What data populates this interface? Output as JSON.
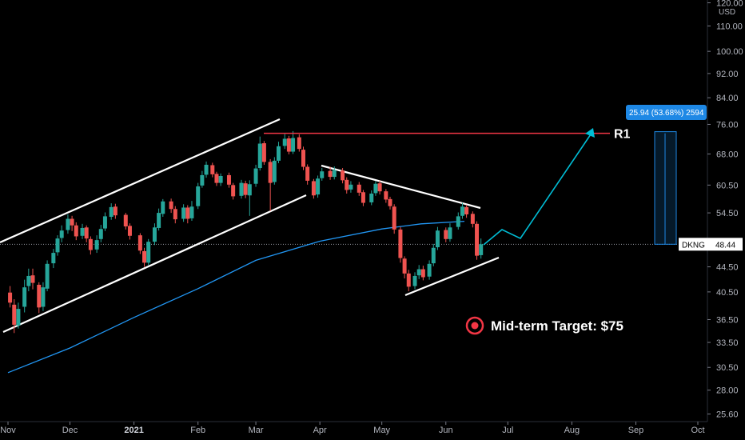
{
  "chart_data": {
    "type": "candlestick",
    "symbol": "DKNG",
    "currency_label": "USD",
    "last_price_label": "48.44",
    "last_price": 48.44,
    "y_axis_scale": "log",
    "y_ticks": [
      "120.00",
      "110.00",
      "100.00",
      "92.00",
      "84.00",
      "76.00",
      "68.00",
      "60.50",
      "54.50",
      "48.44",
      "44.50",
      "40.50",
      "36.50",
      "33.50",
      "30.50",
      "28.00",
      "25.60"
    ],
    "y_tick_values": [
      120,
      110,
      100,
      92,
      84,
      76,
      68,
      60.5,
      54.5,
      48.44,
      44.5,
      40.5,
      36.5,
      33.5,
      30.5,
      28,
      25.6
    ],
    "x_ticks": [
      {
        "label": "Nov",
        "date": "2020-11-01",
        "bold": false
      },
      {
        "label": "Dec",
        "date": "2020-12-01",
        "bold": false
      },
      {
        "label": "2021",
        "date": "2021-01-01",
        "bold": true
      },
      {
        "label": "Feb",
        "date": "2021-02-01",
        "bold": false
      },
      {
        "label": "Mar",
        "date": "2021-03-01",
        "bold": false
      },
      {
        "label": "Apr",
        "date": "2021-04-01",
        "bold": false
      },
      {
        "label": "May",
        "date": "2021-05-01",
        "bold": false
      },
      {
        "label": "Jun",
        "date": "2021-06-01",
        "bold": false
      },
      {
        "label": "Jul",
        "date": "2021-07-01",
        "bold": false
      },
      {
        "label": "Aug",
        "date": "2021-08-01",
        "bold": false
      },
      {
        "label": "Sep",
        "date": "2021-09-01",
        "bold": false
      },
      {
        "label": "Oct",
        "date": "2021-10-01",
        "bold": false
      }
    ],
    "x_range": [
      "2020-11-01",
      "2021-10-01"
    ],
    "y_range": [
      24.8,
      122
    ],
    "moving_average": [
      [
        "2020-11-01",
        29.9
      ],
      [
        "2020-12-01",
        32.8
      ],
      [
        "2021-01-01",
        36.8
      ],
      [
        "2021-02-01",
        41.0
      ],
      [
        "2021-03-01",
        45.6
      ],
      [
        "2021-04-01",
        49.0
      ],
      [
        "2021-05-01",
        51.3
      ],
      [
        "2021-05-20",
        52.3
      ],
      [
        "2021-06-10",
        52.8
      ]
    ],
    "candles": [
      [
        "2020-11-02",
        40.4,
        38.9,
        41.4,
        38.2
      ],
      [
        "2020-11-04",
        38.6,
        35.8,
        39.4,
        34.7
      ],
      [
        "2020-11-06",
        35.7,
        38.0,
        38.9,
        35.3
      ],
      [
        "2020-11-09",
        38.3,
        41.2,
        42.4,
        37.5
      ],
      [
        "2020-11-11",
        41.4,
        43.0,
        44.2,
        40.6
      ],
      [
        "2020-11-13",
        43.1,
        41.9,
        44.2,
        40.9
      ],
      [
        "2020-11-16",
        41.6,
        38.2,
        42.0,
        37.4
      ],
      [
        "2020-11-18",
        38.3,
        41.2,
        42.0,
        37.7
      ],
      [
        "2020-11-20",
        41.0,
        45.0,
        45.6,
        40.6
      ],
      [
        "2020-11-23",
        45.1,
        46.9,
        47.6,
        44.3
      ],
      [
        "2020-11-25",
        47.0,
        49.5,
        50.1,
        46.4
      ],
      [
        "2020-11-27",
        49.6,
        51.0,
        52.0,
        48.8
      ],
      [
        "2020-11-30",
        51.1,
        53.3,
        54.2,
        50.4
      ],
      [
        "2020-12-02",
        53.3,
        52.0,
        53.9,
        50.9
      ],
      [
        "2020-12-04",
        52.0,
        49.9,
        52.6,
        49.2
      ],
      [
        "2020-12-07",
        50.0,
        51.5,
        52.3,
        49.4
      ],
      [
        "2020-12-09",
        51.6,
        49.5,
        52.0,
        48.8
      ],
      [
        "2020-12-11",
        49.4,
        47.4,
        49.9,
        46.6
      ],
      [
        "2020-12-14",
        47.5,
        49.2,
        50.1,
        46.9
      ],
      [
        "2020-12-16",
        49.4,
        51.3,
        52.1,
        48.8
      ],
      [
        "2020-12-18",
        51.4,
        53.8,
        54.6,
        50.9
      ],
      [
        "2020-12-21",
        53.7,
        55.7,
        56.5,
        53.1
      ],
      [
        "2020-12-23",
        55.8,
        54.0,
        56.4,
        53.3
      ],
      [
        "2020-12-28",
        54.1,
        51.8,
        54.5,
        51.2
      ],
      [
        "2020-12-30",
        51.9,
        50.0,
        52.4,
        49.3
      ],
      [
        "2021-01-04",
        50.1,
        47.3,
        50.5,
        46.7
      ],
      [
        "2021-01-06",
        47.2,
        45.2,
        47.8,
        44.5
      ],
      [
        "2021-01-08",
        45.2,
        48.9,
        49.4,
        44.8
      ],
      [
        "2021-01-11",
        48.9,
        51.6,
        52.4,
        48.3
      ],
      [
        "2021-01-13",
        51.5,
        54.5,
        55.4,
        51.0
      ],
      [
        "2021-01-15",
        54.3,
        56.9,
        57.4,
        53.7
      ],
      [
        "2021-01-19",
        56.9,
        55.3,
        57.5,
        54.5
      ],
      [
        "2021-01-21",
        55.3,
        53.2,
        55.9,
        52.4
      ],
      [
        "2021-01-25",
        53.3,
        55.6,
        56.3,
        52.7
      ],
      [
        "2021-01-27",
        55.6,
        53.3,
        56.1,
        52.4
      ],
      [
        "2021-01-29",
        53.4,
        55.8,
        57.0,
        52.9
      ],
      [
        "2021-02-01",
        55.9,
        60.2,
        61.0,
        55.3
      ],
      [
        "2021-02-03",
        60.4,
        62.8,
        63.8,
        59.9
      ],
      [
        "2021-02-05",
        62.9,
        65.3,
        66.1,
        62.2
      ],
      [
        "2021-02-08",
        65.2,
        63.0,
        65.8,
        62.3
      ],
      [
        "2021-02-10",
        63.1,
        61.0,
        63.6,
        60.3
      ],
      [
        "2021-02-12",
        61.0,
        62.6,
        63.2,
        60.3
      ],
      [
        "2021-02-16",
        62.8,
        60.6,
        63.4,
        59.9
      ],
      [
        "2021-02-18",
        60.5,
        58.0,
        61.0,
        57.3
      ],
      [
        "2021-02-22",
        58.1,
        61.0,
        61.7,
        57.5
      ],
      [
        "2021-02-24",
        60.9,
        58.3,
        61.5,
        57.6
      ],
      [
        "2021-02-26",
        58.2,
        60.7,
        61.6,
        53.9
      ],
      [
        "2021-03-01",
        60.8,
        64.4,
        65.3,
        60.1
      ],
      [
        "2021-03-03",
        64.5,
        70.7,
        72.6,
        63.9
      ],
      [
        "2021-03-05",
        70.8,
        66.0,
        71.4,
        65.3
      ],
      [
        "2021-03-08",
        66.0,
        61.0,
        66.7,
        54.9
      ],
      [
        "2021-03-10",
        61.2,
        66.3,
        67.2,
        60.6
      ],
      [
        "2021-03-12",
        66.3,
        70.0,
        71.2,
        65.7
      ],
      [
        "2021-03-15",
        70.1,
        72.0,
        73.3,
        69.3
      ],
      [
        "2021-03-17",
        72.1,
        68.6,
        72.8,
        67.9
      ],
      [
        "2021-03-19",
        68.6,
        72.2,
        74.1,
        68.0
      ],
      [
        "2021-03-22",
        72.4,
        69.3,
        73.2,
        68.6
      ],
      [
        "2021-03-24",
        69.1,
        64.8,
        69.9,
        64.0
      ],
      [
        "2021-03-26",
        64.8,
        61.5,
        65.4,
        60.6
      ],
      [
        "2021-03-29",
        61.4,
        58.2,
        61.9,
        57.5
      ],
      [
        "2021-03-31",
        58.4,
        62.0,
        62.7,
        57.7
      ],
      [
        "2021-04-02",
        62.1,
        63.7,
        64.5,
        61.5
      ],
      [
        "2021-04-06",
        63.8,
        62.4,
        64.8,
        61.7
      ],
      [
        "2021-04-08",
        62.4,
        64.0,
        64.9,
        61.8
      ],
      [
        "2021-04-12",
        63.9,
        61.6,
        64.5,
        60.9
      ],
      [
        "2021-04-14",
        61.7,
        59.4,
        62.3,
        58.6
      ],
      [
        "2021-04-16",
        59.5,
        60.6,
        61.4,
        58.8
      ],
      [
        "2021-04-20",
        60.6,
        58.8,
        61.2,
        58.1
      ],
      [
        "2021-04-22",
        58.9,
        56.6,
        59.4,
        55.9
      ],
      [
        "2021-04-26",
        56.7,
        58.6,
        59.3,
        56.1
      ],
      [
        "2021-04-28",
        58.7,
        60.8,
        61.4,
        58.1
      ],
      [
        "2021-04-30",
        60.9,
        59.1,
        61.5,
        58.4
      ],
      [
        "2021-05-03",
        59.1,
        57.3,
        59.6,
        56.6
      ],
      [
        "2021-05-05",
        57.4,
        55.9,
        57.9,
        55.2
      ],
      [
        "2021-05-07",
        55.8,
        51.2,
        56.3,
        50.4
      ],
      [
        "2021-05-10",
        51.2,
        46.0,
        51.7,
        45.2
      ],
      [
        "2021-05-12",
        45.9,
        43.4,
        46.3,
        42.6
      ],
      [
        "2021-05-14",
        43.4,
        41.3,
        44.0,
        40.6
      ],
      [
        "2021-05-17",
        41.4,
        43.0,
        43.6,
        40.9
      ],
      [
        "2021-05-19",
        43.1,
        44.1,
        44.8,
        42.5
      ],
      [
        "2021-05-21",
        44.1,
        42.8,
        44.7,
        42.3
      ],
      [
        "2021-05-24",
        42.9,
        45.0,
        45.6,
        42.4
      ],
      [
        "2021-05-26",
        45.1,
        47.8,
        48.5,
        44.6
      ],
      [
        "2021-05-28",
        47.9,
        51.0,
        51.7,
        47.4
      ],
      [
        "2021-06-01",
        51.1,
        49.4,
        51.6,
        48.8
      ],
      [
        "2021-06-03",
        49.4,
        51.6,
        52.4,
        48.9
      ],
      [
        "2021-06-07",
        51.7,
        53.8,
        54.6,
        51.2
      ],
      [
        "2021-06-09",
        53.9,
        55.8,
        56.6,
        53.3
      ],
      [
        "2021-06-11",
        55.7,
        54.2,
        56.2,
        53.5
      ],
      [
        "2021-06-14",
        54.3,
        52.3,
        54.8,
        51.6
      ],
      [
        "2021-06-16",
        52.3,
        46.4,
        52.8,
        45.7
      ],
      [
        "2021-06-18",
        46.5,
        48.44,
        49.5,
        45.9
      ]
    ],
    "annotations": {
      "resistance_label": "R1",
      "resistance_level": 73.5,
      "measure_label": "25.94 (53.68%) 2594",
      "target_text": "Mid-term Target: $75"
    },
    "colors": {
      "up": "#26a69a",
      "down": "#ef5350",
      "ma": "#2196f3",
      "resistance": "#f23645",
      "projection": "#00bcd4",
      "target_icon": "#f23645",
      "measure": "#1e88e5"
    }
  }
}
